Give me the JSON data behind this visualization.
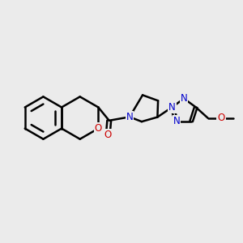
{
  "bg_color": "#ebebeb",
  "bond_color": "#000000",
  "n_color": "#0000cc",
  "o_color": "#cc0000",
  "bond_width": 1.8,
  "font_size": 8.5,
  "fig_width": 3.0,
  "fig_height": 3.0,
  "dpi": 100,
  "xlim": [
    0,
    10
  ],
  "ylim": [
    0,
    10
  ]
}
